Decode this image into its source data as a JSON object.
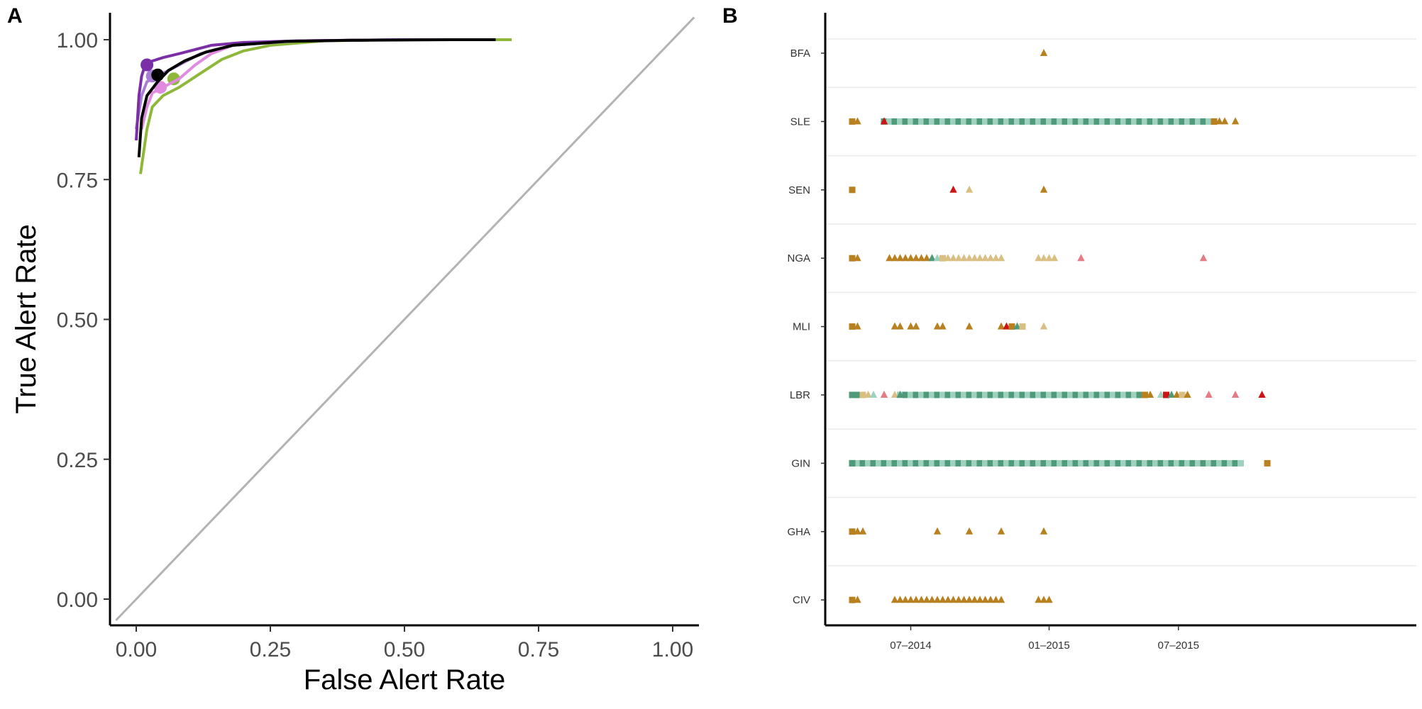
{
  "panels": {
    "a_label": "A",
    "b_label": "B"
  },
  "colors": {
    "roc_purple_dark": "#7b2fa6",
    "roc_purple_light": "#a97fd6",
    "roc_pink": "#e08ae0",
    "roc_green": "#8db83a",
    "roc_mean": "#000000",
    "diagonal": "#b3b3b3",
    "gold": "#b8801f",
    "gold_light": "#d9bf84",
    "green_dark": "#4f9a7a",
    "green_light": "#9fd1bf",
    "red": "#cc1414",
    "pink": "#e77b85"
  },
  "chart_data": [
    {
      "type": "line",
      "title": "",
      "xlabel": "False Alert Rate",
      "ylabel": "True Alert Rate",
      "xlim": [
        -0.05,
        1.05
      ],
      "ylim": [
        -0.05,
        1.05
      ],
      "x_ticks": [
        "0.00",
        "0.25",
        "0.50",
        "0.75",
        "1.00"
      ],
      "y_ticks": [
        "0.00",
        "0.25",
        "0.50",
        "0.75",
        "1.00"
      ],
      "grid": false,
      "series": [
        {
          "color_key": "roc_purple_dark",
          "points": [
            [
              0.0,
              0.82
            ],
            [
              0.005,
              0.9
            ],
            [
              0.01,
              0.935
            ],
            [
              0.015,
              0.95
            ],
            [
              0.03,
              0.962
            ],
            [
              0.05,
              0.968
            ],
            [
              0.08,
              0.975
            ],
            [
              0.1,
              0.98
            ],
            [
              0.14,
              0.99
            ],
            [
              0.2,
              0.995
            ],
            [
              0.3,
              0.998
            ],
            [
              0.5,
              1.0
            ],
            [
              0.67,
              1.0
            ]
          ],
          "marker": [
            0.02,
            0.955
          ]
        },
        {
          "color_key": "roc_purple_light",
          "points": [
            [
              0.0,
              0.84
            ],
            [
              0.01,
              0.9
            ],
            [
              0.02,
              0.925
            ],
            [
              0.04,
              0.935
            ],
            [
              0.06,
              0.945
            ],
            [
              0.09,
              0.96
            ],
            [
              0.12,
              0.975
            ],
            [
              0.18,
              0.99
            ],
            [
              0.3,
              0.998
            ],
            [
              0.5,
              1.0
            ],
            [
              0.67,
              1.0
            ]
          ],
          "marker": [
            0.03,
            0.935
          ]
        },
        {
          "color_key": "roc_pink",
          "points": [
            [
              0.01,
              0.84
            ],
            [
              0.02,
              0.88
            ],
            [
              0.03,
              0.905
            ],
            [
              0.05,
              0.915
            ],
            [
              0.08,
              0.93
            ],
            [
              0.11,
              0.955
            ],
            [
              0.14,
              0.975
            ],
            [
              0.18,
              0.99
            ],
            [
              0.3,
              0.998
            ],
            [
              0.5,
              1.0
            ],
            [
              0.67,
              1.0
            ]
          ],
          "marker": [
            0.045,
            0.915
          ]
        },
        {
          "color_key": "roc_green",
          "points": [
            [
              0.008,
              0.76
            ],
            [
              0.02,
              0.84
            ],
            [
              0.03,
              0.88
            ],
            [
              0.05,
              0.9
            ],
            [
              0.08,
              0.915
            ],
            [
              0.12,
              0.94
            ],
            [
              0.16,
              0.965
            ],
            [
              0.2,
              0.98
            ],
            [
              0.25,
              0.99
            ],
            [
              0.35,
              0.998
            ],
            [
              0.5,
              1.0
            ],
            [
              0.7,
              1.0
            ]
          ],
          "marker": [
            0.07,
            0.93
          ]
        },
        {
          "color_key": "roc_mean",
          "points": [
            [
              0.005,
              0.79
            ],
            [
              0.01,
              0.86
            ],
            [
              0.02,
              0.9
            ],
            [
              0.04,
              0.925
            ],
            [
              0.06,
              0.945
            ],
            [
              0.09,
              0.962
            ],
            [
              0.13,
              0.978
            ],
            [
              0.18,
              0.99
            ],
            [
              0.28,
              0.997
            ],
            [
              0.4,
              0.999
            ],
            [
              0.6,
              1.0
            ],
            [
              0.67,
              1.0
            ]
          ],
          "marker": [
            0.04,
            0.937
          ]
        },
        {
          "color_key": "diagonal",
          "points": [
            [
              -0.05,
              -0.05
            ],
            [
              1.05,
              1.05
            ]
          ],
          "marker": null
        }
      ]
    },
    {
      "type": "scatter",
      "title": "",
      "xlabel": "",
      "ylabel": "",
      "x_ticks": [
        "07–2014",
        "01–2015",
        "07–2015"
      ],
      "categories": [
        "BFA",
        "SLE",
        "SEN",
        "NGA",
        "MLI",
        "LBR",
        "GIN",
        "GHA",
        "CIV"
      ],
      "grid": true,
      "legend": "none",
      "x_unit": "week index from week of 2014-04-14",
      "runs": {
        "GIN": {
          "from": 0,
          "to": 73,
          "shape": "square"
        },
        "SLE": {
          "from": 6,
          "to": 68,
          "shape": "square"
        },
        "LBR": {
          "from": 9,
          "to": 54,
          "shape": "square"
        }
      },
      "series": [
        {
          "country": "BFA",
          "points": [
            [
              36,
              "tri",
              "gold"
            ]
          ]
        },
        {
          "country": "SLE",
          "points": [
            [
              0,
              "sq",
              "gold"
            ],
            [
              1,
              "tri",
              "gold"
            ],
            [
              6,
              "tri",
              "red"
            ],
            [
              68,
              "sq",
              "gold"
            ],
            [
              69,
              "tri",
              "gold"
            ],
            [
              70,
              "tri",
              "gold"
            ],
            [
              72,
              "tri",
              "gold"
            ]
          ]
        },
        {
          "country": "SEN",
          "points": [
            [
              0,
              "sq",
              "gold"
            ],
            [
              19,
              "tri",
              "red"
            ],
            [
              22,
              "tri",
              "gold_light"
            ],
            [
              36,
              "tri",
              "gold"
            ]
          ]
        },
        {
          "country": "NGA",
          "points": [
            [
              0,
              "sq",
              "gold"
            ],
            [
              1,
              "tri",
              "gold"
            ],
            [
              7,
              "tri",
              "gold"
            ],
            [
              8,
              "tri",
              "gold"
            ],
            [
              9,
              "tri",
              "gold"
            ],
            [
              10,
              "tri",
              "gold"
            ],
            [
              11,
              "tri",
              "gold"
            ],
            [
              12,
              "tri",
              "gold"
            ],
            [
              13,
              "tri",
              "gold"
            ],
            [
              14,
              "tri",
              "gold"
            ],
            [
              15,
              "tri",
              "green_dark"
            ],
            [
              16,
              "tri",
              "green_light"
            ],
            [
              17,
              "sq",
              "gold_light"
            ],
            [
              18,
              "tri",
              "gold_light"
            ],
            [
              19,
              "tri",
              "gold_light"
            ],
            [
              20,
              "tri",
              "gold_light"
            ],
            [
              21,
              "tri",
              "gold_light"
            ],
            [
              22,
              "tri",
              "gold_light"
            ],
            [
              23,
              "tri",
              "gold_light"
            ],
            [
              24,
              "tri",
              "gold_light"
            ],
            [
              25,
              "tri",
              "gold_light"
            ],
            [
              26,
              "tri",
              "gold_light"
            ],
            [
              27,
              "tri",
              "gold_light"
            ],
            [
              28,
              "tri",
              "gold_light"
            ],
            [
              35,
              "tri",
              "gold_light"
            ],
            [
              36,
              "tri",
              "gold_light"
            ],
            [
              37,
              "tri",
              "gold_light"
            ],
            [
              38,
              "tri",
              "gold_light"
            ],
            [
              43,
              "tri",
              "pink"
            ],
            [
              66,
              "tri",
              "pink"
            ]
          ]
        },
        {
          "country": "MLI",
          "points": [
            [
              0,
              "sq",
              "gold"
            ],
            [
              1,
              "tri",
              "gold"
            ],
            [
              8,
              "tri",
              "gold"
            ],
            [
              9,
              "tri",
              "gold"
            ],
            [
              11,
              "tri",
              "gold"
            ],
            [
              12,
              "tri",
              "gold"
            ],
            [
              16,
              "tri",
              "gold"
            ],
            [
              17,
              "tri",
              "gold"
            ],
            [
              22,
              "tri",
              "gold"
            ],
            [
              28,
              "tri",
              "gold"
            ],
            [
              29,
              "tri",
              "red"
            ],
            [
              30,
              "sq",
              "gold"
            ],
            [
              31,
              "tri",
              "green_dark"
            ],
            [
              32,
              "sq",
              "gold_light"
            ],
            [
              36,
              "tri",
              "gold_light"
            ]
          ]
        },
        {
          "country": "LBR",
          "points": [
            [
              0,
              "sq",
              "green_dark"
            ],
            [
              1,
              "sq",
              "green_dark"
            ],
            [
              2,
              "sq",
              "gold_light"
            ],
            [
              3,
              "tri",
              "gold_light"
            ],
            [
              4,
              "tri",
              "green_light"
            ],
            [
              6,
              "tri",
              "pink"
            ],
            [
              8,
              "tri",
              "gold_light"
            ],
            [
              9,
              "tri",
              "green_dark"
            ],
            [
              55,
              "sq",
              "gold"
            ],
            [
              56,
              "tri",
              "gold"
            ],
            [
              58,
              "tri",
              "green_light"
            ],
            [
              59,
              "sq",
              "red"
            ],
            [
              60,
              "tri",
              "green_dark"
            ],
            [
              61,
              "tri",
              "gold"
            ],
            [
              62,
              "sq",
              "gold_light"
            ],
            [
              63,
              "tri",
              "gold"
            ],
            [
              67,
              "tri",
              "pink"
            ],
            [
              72,
              "tri",
              "pink"
            ],
            [
              77,
              "tri",
              "red"
            ]
          ]
        },
        {
          "country": "GIN",
          "points": [
            [
              0,
              "sq",
              "green_dark"
            ],
            [
              78,
              "sq",
              "gold"
            ]
          ]
        },
        {
          "country": "GHA",
          "points": [
            [
              0,
              "sq",
              "gold"
            ],
            [
              1,
              "tri",
              "gold"
            ],
            [
              2,
              "tri",
              "gold"
            ],
            [
              16,
              "tri",
              "gold"
            ],
            [
              22,
              "tri",
              "gold"
            ],
            [
              28,
              "tri",
              "gold"
            ],
            [
              36,
              "tri",
              "gold"
            ]
          ]
        },
        {
          "country": "CIV",
          "points": [
            [
              0,
              "sq",
              "gold"
            ],
            [
              1,
              "tri",
              "gold"
            ],
            [
              8,
              "tri",
              "gold"
            ],
            [
              9,
              "tri",
              "gold"
            ],
            [
              10,
              "tri",
              "gold"
            ],
            [
              11,
              "tri",
              "gold"
            ],
            [
              12,
              "tri",
              "gold"
            ],
            [
              13,
              "tri",
              "gold"
            ],
            [
              14,
              "tri",
              "gold"
            ],
            [
              15,
              "tri",
              "gold"
            ],
            [
              16,
              "tri",
              "gold"
            ],
            [
              17,
              "tri",
              "gold"
            ],
            [
              18,
              "tri",
              "gold"
            ],
            [
              19,
              "tri",
              "gold"
            ],
            [
              20,
              "tri",
              "gold"
            ],
            [
              21,
              "tri",
              "gold"
            ],
            [
              22,
              "tri",
              "gold"
            ],
            [
              23,
              "tri",
              "gold"
            ],
            [
              24,
              "tri",
              "gold"
            ],
            [
              25,
              "tri",
              "gold"
            ],
            [
              26,
              "tri",
              "gold"
            ],
            [
              27,
              "tri",
              "gold"
            ],
            [
              28,
              "tri",
              "gold"
            ],
            [
              35,
              "tri",
              "gold"
            ],
            [
              36,
              "tri",
              "gold"
            ],
            [
              37,
              "tri",
              "gold"
            ]
          ]
        }
      ]
    }
  ]
}
